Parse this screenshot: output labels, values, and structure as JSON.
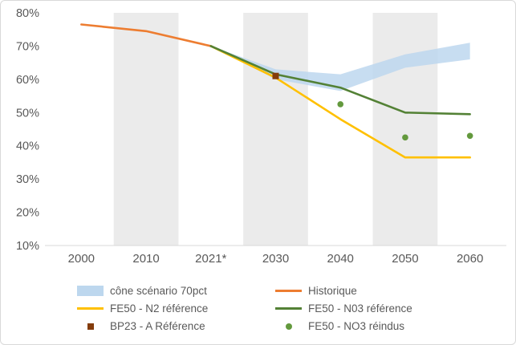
{
  "figure": {
    "background": "#ffffff",
    "border_color": "#d9d9d9"
  },
  "axes": {
    "text_color": "#595959",
    "axis_line_color": "#d9d9d9",
    "band_color": "#ebebeb",
    "band_category_indexes": [
      1,
      3,
      5
    ],
    "y_tick_labels": [
      "80%",
      "70%",
      "60%",
      "50%",
      "40%",
      "30%",
      "20%",
      "10%"
    ],
    "y_tick_values": [
      80,
      70,
      60,
      50,
      40,
      30,
      20,
      10
    ]
  },
  "chart_data": {
    "type": "line",
    "title": "",
    "xlabel": "",
    "ylabel": "",
    "ylim": [
      10,
      80
    ],
    "grid": "vertical-bands",
    "legend_position": "bottom",
    "categories": [
      "2000",
      "2010",
      "2021*",
      "2030",
      "2040",
      "2050",
      "2060"
    ],
    "series": [
      {
        "name": "cône scénario 70pct",
        "type": "area-band",
        "color": "#bdd7ee",
        "x": [
          "2021*",
          "2030",
          "2040",
          "2050",
          "2060"
        ],
        "upper": [
          70,
          63,
          61.5,
          67.5,
          71
        ],
        "lower": [
          70,
          60,
          56.5,
          63.5,
          66
        ]
      },
      {
        "name": "Historique",
        "type": "line",
        "color": "#ed7d31",
        "x": [
          "2000",
          "2010",
          "2021*"
        ],
        "values": [
          76.5,
          74.5,
          70
        ]
      },
      {
        "name": "FE50 - N2 référence",
        "type": "line",
        "color": "#ffc000",
        "x": [
          "2021*",
          "2030",
          "2040",
          "2050",
          "2060"
        ],
        "values": [
          70,
          60.5,
          48,
          36.5,
          36.5
        ]
      },
      {
        "name": "FE50 - N03 référence",
        "type": "line",
        "color": "#538135",
        "x": [
          "2021*",
          "2030",
          "2040",
          "2050",
          "2060"
        ],
        "values": [
          70,
          61.5,
          57.5,
          50,
          49.5
        ]
      },
      {
        "name": "BP23 - A Référence",
        "type": "point-square",
        "color": "#843c0c",
        "x": [
          "2030"
        ],
        "values": [
          61
        ]
      },
      {
        "name": "FE50 - NO3 réindus",
        "type": "point-dot",
        "color": "#63993d",
        "x": [
          "2040",
          "2050",
          "2060"
        ],
        "values": [
          52.5,
          42.5,
          43
        ]
      }
    ]
  }
}
